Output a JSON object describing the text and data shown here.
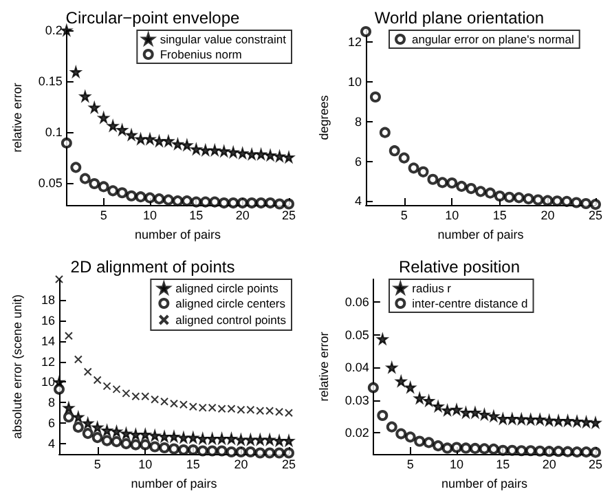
{
  "chart_data": [
    {
      "type": "scatter",
      "title": "Circular−point envelope",
      "xlabel": "number of pairs",
      "ylabel": "relative error",
      "x": [
        1,
        2,
        3,
        4,
        5,
        6,
        7,
        8,
        9,
        10,
        11,
        12,
        13,
        14,
        15,
        16,
        17,
        18,
        19,
        20,
        21,
        22,
        23,
        24,
        25
      ],
      "xlim": [
        1,
        25
      ],
      "xticks": [
        5,
        10,
        15,
        20,
        25
      ],
      "ylim": [
        0.028,
        0.2
      ],
      "yticks": [
        0.05,
        0.1,
        0.15,
        0.2
      ],
      "legend": "top right",
      "grid": false,
      "series": [
        {
          "name": "singular value constraint",
          "color": "#000000",
          "marker": "star",
          "values": [
            0.2,
            0.159,
            0.135,
            0.124,
            0.114,
            0.106,
            0.102,
            0.097,
            0.093,
            0.093,
            0.091,
            0.091,
            0.088,
            0.087,
            0.083,
            0.082,
            0.082,
            0.081,
            0.08,
            0.079,
            0.078,
            0.078,
            0.077,
            0.076,
            0.075
          ]
        },
        {
          "name": "Frobenius norm",
          "color": "#000000",
          "marker": "circle",
          "values": [
            0.089,
            0.065,
            0.054,
            0.049,
            0.046,
            0.042,
            0.04,
            0.037,
            0.036,
            0.035,
            0.034,
            0.033,
            0.032,
            0.032,
            0.031,
            0.031,
            0.031,
            0.03,
            0.03,
            0.03,
            0.03,
            0.03,
            0.03,
            0.029,
            0.029
          ]
        }
      ]
    },
    {
      "type": "scatter",
      "title": "World plane orientation",
      "xlabel": "number of pairs",
      "ylabel": "degrees",
      "x": [
        1,
        2,
        3,
        4,
        5,
        6,
        7,
        8,
        9,
        10,
        11,
        12,
        13,
        14,
        15,
        16,
        17,
        18,
        19,
        20,
        21,
        22,
        23,
        24,
        25
      ],
      "xlim": [
        1,
        25
      ],
      "xticks": [
        5,
        10,
        15,
        20,
        25
      ],
      "ylim": [
        3.8,
        12.6
      ],
      "yticks": [
        4,
        6,
        8,
        10,
        12
      ],
      "legend": "top",
      "grid": false,
      "series": [
        {
          "name": "angular error on plane's normal",
          "color": "#000000",
          "marker": "circle",
          "values": [
            12.53,
            9.24,
            7.45,
            6.53,
            6.17,
            5.66,
            5.47,
            5.09,
            4.93,
            4.91,
            4.74,
            4.63,
            4.48,
            4.4,
            4.25,
            4.19,
            4.17,
            4.11,
            4.06,
            4.02,
            4.0,
            3.98,
            3.92,
            3.87,
            3.83
          ]
        }
      ]
    },
    {
      "type": "scatter",
      "title": "2D alignment of points",
      "xlabel": "number of pairs",
      "ylabel": "absolute error (scene unit)",
      "x": [
        1,
        2,
        3,
        4,
        5,
        6,
        7,
        8,
        9,
        10,
        11,
        12,
        13,
        14,
        15,
        16,
        17,
        18,
        19,
        20,
        21,
        22,
        23,
        24,
        25
      ],
      "xlim": [
        1,
        25
      ],
      "xticks": [
        5,
        10,
        15,
        20,
        25
      ],
      "ylim": [
        3,
        20
      ],
      "yticks": [
        4,
        6,
        8,
        10,
        12,
        14,
        16,
        18
      ],
      "legend": "top right",
      "grid": false,
      "series": [
        {
          "name": "aligned circle points",
          "color": "#000000",
          "marker": "star",
          "values": [
            10.0,
            7.5,
            6.6,
            6.0,
            5.6,
            5.3,
            5.2,
            5.0,
            4.9,
            4.9,
            4.8,
            4.7,
            4.7,
            4.6,
            4.6,
            4.5,
            4.5,
            4.5,
            4.5,
            4.4,
            4.4,
            4.4,
            4.4,
            4.3,
            4.3
          ]
        },
        {
          "name": "aligned circle centers",
          "color": "#000000",
          "marker": "circle",
          "values": [
            9.3,
            6.6,
            5.6,
            5.0,
            4.6,
            4.3,
            4.2,
            4.0,
            3.9,
            3.9,
            3.7,
            3.6,
            3.5,
            3.4,
            3.4,
            3.3,
            3.3,
            3.3,
            3.2,
            3.2,
            3.2,
            3.1,
            3.1,
            3.1,
            3.1
          ]
        },
        {
          "name": "aligned control points",
          "color": "#000000",
          "marker": "cross",
          "values": [
            20.0,
            14.5,
            12.2,
            11.0,
            10.2,
            9.6,
            9.3,
            8.9,
            8.6,
            8.6,
            8.3,
            8.1,
            7.9,
            7.8,
            7.6,
            7.5,
            7.5,
            7.4,
            7.4,
            7.3,
            7.3,
            7.2,
            7.2,
            7.1,
            7.0
          ]
        }
      ]
    },
    {
      "type": "scatter",
      "title": "Relative position",
      "xlabel": "number of pairs",
      "ylabel": "relative error",
      "x": [
        1,
        2,
        3,
        4,
        5,
        6,
        7,
        8,
        9,
        10,
        11,
        12,
        13,
        14,
        15,
        16,
        17,
        18,
        19,
        20,
        21,
        22,
        23,
        24,
        25
      ],
      "xlim": [
        1,
        25
      ],
      "xticks": [
        5,
        10,
        15,
        20,
        25
      ],
      "ylim": [
        0.0135,
        0.067
      ],
      "yticks": [
        0.02,
        0.03,
        0.04,
        0.05,
        0.06
      ],
      "legend": "top",
      "grid": false,
      "series": [
        {
          "name": "radius r",
          "color": "#000000",
          "marker": "star",
          "values": [
            null,
            0.0487,
            0.04,
            0.0358,
            0.0339,
            0.0306,
            0.0298,
            0.0281,
            0.0269,
            0.0271,
            0.0262,
            0.0262,
            0.0256,
            0.0251,
            0.0243,
            0.0243,
            0.0242,
            0.0241,
            0.0241,
            0.0238,
            0.0237,
            0.0237,
            0.0235,
            0.0233,
            0.0231
          ]
        },
        {
          "name": "inter-centre distance d",
          "color": "#000000",
          "marker": "circle",
          "values": [
            0.0338,
            0.0253,
            0.0218,
            0.0197,
            0.0187,
            0.0174,
            0.017,
            0.016,
            0.0153,
            0.0155,
            0.0153,
            0.0152,
            0.0151,
            0.015,
            0.0146,
            0.0146,
            0.0145,
            0.0145,
            0.0144,
            0.0143,
            0.0143,
            0.0142,
            0.0141,
            0.0141,
            0.014
          ]
        }
      ]
    }
  ]
}
